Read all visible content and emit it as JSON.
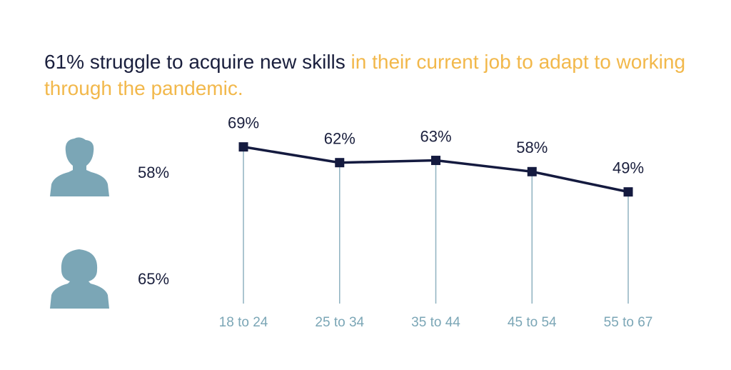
{
  "title": {
    "lead": "61% struggle to acquire new skills",
    "rest": "in their current job to adapt to working through the pandemic."
  },
  "gender_stats": [
    "58%",
    "65%"
  ],
  "chart_data": {
    "type": "line",
    "categories": [
      "18 to 24",
      "25 to 34",
      "35 to 44",
      "45 to 54",
      "55 to 67"
    ],
    "values": [
      69,
      62,
      63,
      58,
      49
    ],
    "value_labels": [
      "69%",
      "62%",
      "63%",
      "58%",
      "49%"
    ],
    "color": "#141a3f",
    "stem_color": "#8fb2c0"
  }
}
